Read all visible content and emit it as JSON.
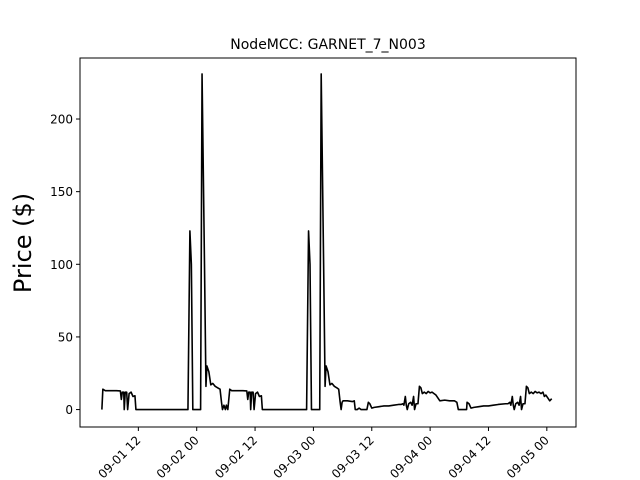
{
  "chart_data": {
    "type": "line",
    "title": "NodeMCC: GARNET_7_N003",
    "xlabel": "",
    "ylabel": "Price ($)",
    "x_ticks": [
      "09-01 12",
      "09-02 00",
      "09-02 12",
      "09-03 00",
      "09-03 12",
      "09-04 00",
      "09-04 12",
      "09-05 00"
    ],
    "x_tick_hours": [
      36,
      48,
      60,
      72,
      84,
      96,
      108,
      120
    ],
    "y_ticks": [
      0,
      50,
      100,
      150,
      200
    ],
    "xlim_hours": [
      24,
      126
    ],
    "ylim": [
      -12,
      242
    ],
    "grid": false,
    "legend": "none",
    "line_color": "#000000",
    "series": [
      {
        "name": "",
        "points": [
          [
            28.5,
            0
          ],
          [
            28.7,
            14
          ],
          [
            29.2,
            13
          ],
          [
            30,
            13
          ],
          [
            31.5,
            13
          ],
          [
            32.3,
            12.8
          ],
          [
            32.5,
            7
          ],
          [
            32.7,
            12
          ],
          [
            33,
            12
          ],
          [
            33.1,
            0
          ],
          [
            33.3,
            12
          ],
          [
            33.6,
            12
          ],
          [
            33.8,
            0
          ],
          [
            34.1,
            11
          ],
          [
            34.5,
            12
          ],
          [
            34.9,
            9
          ],
          [
            35.3,
            9.5
          ],
          [
            35.5,
            0
          ],
          [
            40,
            0
          ],
          [
            45,
            0
          ],
          [
            46.2,
            0
          ],
          [
            46.6,
            123
          ],
          [
            46.9,
            100
          ],
          [
            47.2,
            0
          ],
          [
            48,
            0
          ],
          [
            48.8,
            0
          ],
          [
            49.1,
            231
          ],
          [
            49.6,
            100
          ],
          [
            49.9,
            16
          ],
          [
            50.1,
            30
          ],
          [
            50.5,
            26
          ],
          [
            50.9,
            17
          ],
          [
            51.3,
            18
          ],
          [
            51.8,
            16
          ],
          [
            52.3,
            15
          ],
          [
            52.8,
            14
          ],
          [
            53.1,
            5
          ],
          [
            53.3,
            0
          ],
          [
            53.6,
            3
          ],
          [
            53.9,
            0
          ],
          [
            54.1,
            3
          ],
          [
            54.4,
            0
          ],
          [
            54.8,
            14
          ],
          [
            55.2,
            13
          ],
          [
            56,
            13
          ],
          [
            57.5,
            13
          ],
          [
            58.3,
            12.8
          ],
          [
            58.5,
            7
          ],
          [
            58.7,
            12
          ],
          [
            59,
            12
          ],
          [
            59.1,
            0
          ],
          [
            59.3,
            12
          ],
          [
            59.6,
            12
          ],
          [
            59.8,
            0
          ],
          [
            60.1,
            11
          ],
          [
            60.5,
            12
          ],
          [
            60.9,
            9
          ],
          [
            61.3,
            9.5
          ],
          [
            61.5,
            0
          ],
          [
            66,
            0
          ],
          [
            70,
            0
          ],
          [
            70.6,
            0
          ],
          [
            71,
            123
          ],
          [
            71.3,
            100
          ],
          [
            71.6,
            0
          ],
          [
            72.5,
            0
          ],
          [
            73.3,
            0
          ],
          [
            73.6,
            231
          ],
          [
            74.1,
            100
          ],
          [
            74.4,
            16
          ],
          [
            74.6,
            30
          ],
          [
            75,
            26
          ],
          [
            75.4,
            17
          ],
          [
            75.8,
            18
          ],
          [
            76.3,
            16
          ],
          [
            76.8,
            15
          ],
          [
            77.2,
            14
          ],
          [
            77.5,
            5
          ],
          [
            77.7,
            0
          ],
          [
            77.9,
            5
          ],
          [
            78.1,
            6
          ],
          [
            79,
            6
          ],
          [
            80,
            5.5
          ],
          [
            80.4,
            6
          ],
          [
            80.6,
            0
          ],
          [
            81,
            0
          ],
          [
            81.4,
            1
          ],
          [
            81.8,
            0
          ],
          [
            82.5,
            0
          ],
          [
            83,
            0
          ],
          [
            83.3,
            5
          ],
          [
            83.6,
            4
          ],
          [
            84,
            1
          ],
          [
            84.5,
            1.5
          ],
          [
            85.5,
            2
          ],
          [
            86.5,
            2.5
          ],
          [
            87.5,
            2.5
          ],
          [
            88.5,
            3
          ],
          [
            89.5,
            3.5
          ],
          [
            90,
            3.5
          ],
          [
            90.4,
            4
          ],
          [
            90.6,
            3
          ],
          [
            90.9,
            9
          ],
          [
            91.1,
            3
          ],
          [
            91.3,
            0
          ],
          [
            91.6,
            4
          ],
          [
            92,
            5
          ],
          [
            92.3,
            3
          ],
          [
            92.6,
            9
          ],
          [
            92.8,
            0
          ],
          [
            93.1,
            4
          ],
          [
            93.5,
            4
          ],
          [
            93.8,
            16
          ],
          [
            94.1,
            15
          ],
          [
            94.4,
            11
          ],
          [
            94.8,
            12
          ],
          [
            95.2,
            11
          ],
          [
            95.6,
            12.5
          ],
          [
            96,
            11.5
          ],
          [
            96.4,
            12
          ],
          [
            96.8,
            11
          ],
          [
            97.2,
            10
          ],
          [
            97.6,
            8
          ],
          [
            98,
            6
          ],
          [
            99,
            6.5
          ],
          [
            100,
            6
          ],
          [
            101,
            6
          ],
          [
            101.5,
            5
          ],
          [
            101.8,
            0
          ],
          [
            102,
            0
          ],
          [
            103,
            0
          ],
          [
            103.5,
            0
          ],
          [
            103.6,
            5
          ],
          [
            104,
            4
          ],
          [
            104.4,
            1
          ],
          [
            105,
            1.5
          ],
          [
            106,
            2
          ],
          [
            107,
            2.5
          ],
          [
            108,
            2.5
          ],
          [
            109,
            3
          ],
          [
            110,
            3.5
          ],
          [
            111.5,
            4
          ],
          [
            112,
            4
          ],
          [
            112.4,
            5
          ],
          [
            112.6,
            3
          ],
          [
            112.9,
            9
          ],
          [
            113.1,
            3
          ],
          [
            113.3,
            0
          ],
          [
            113.6,
            4
          ],
          [
            114,
            5
          ],
          [
            114.3,
            3
          ],
          [
            114.6,
            9
          ],
          [
            114.8,
            0
          ],
          [
            115.1,
            4
          ],
          [
            115.5,
            4
          ],
          [
            115.8,
            16
          ],
          [
            116.1,
            15
          ],
          [
            116.4,
            11
          ],
          [
            116.8,
            12
          ],
          [
            117.2,
            11
          ],
          [
            117.6,
            12.5
          ],
          [
            118,
            11.5
          ],
          [
            118.4,
            12
          ],
          [
            118.8,
            11
          ],
          [
            119.2,
            12
          ],
          [
            119.5,
            9
          ],
          [
            119.8,
            10
          ],
          [
            120.2,
            8
          ],
          [
            120.6,
            6
          ],
          [
            121,
            7.5
          ]
        ]
      }
    ]
  }
}
